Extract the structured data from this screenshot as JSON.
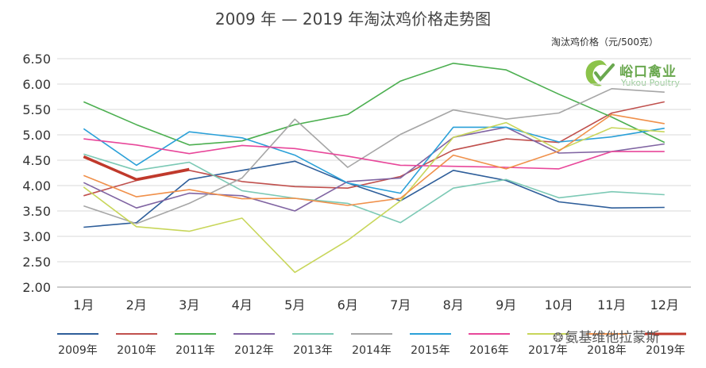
{
  "chart_data": {
    "type": "line",
    "title": "2009 年 — 2019 年淘汰鸡价格走势图",
    "ylabel": "淘汰鸡价格（元/500克）",
    "xlabel": "",
    "ylim": [
      2.0,
      6.5
    ],
    "yticks": [
      "6.50",
      "6.00",
      "5.50",
      "5.00",
      "4.50",
      "4.00",
      "3.50",
      "3.00",
      "2.50",
      "2.00"
    ],
    "categories": [
      "1月",
      "2月",
      "3月",
      "4月",
      "5月",
      "6月",
      "7月",
      "8月",
      "9月",
      "10月",
      "11月",
      "12月"
    ],
    "grid": "horizontal",
    "legend_position": "bottom",
    "series": [
      {
        "name": "2009年",
        "color": "#2e5e9a",
        "values": [
          3.18,
          3.27,
          4.12,
          4.3,
          4.48,
          4.05,
          3.7,
          4.3,
          4.1,
          3.68,
          3.56,
          3.57
        ]
      },
      {
        "name": "2010年",
        "color": "#c0504d",
        "values": [
          3.8,
          4.1,
          4.3,
          4.08,
          3.98,
          3.95,
          4.18,
          4.7,
          4.92,
          4.85,
          5.43,
          5.65
        ]
      },
      {
        "name": "2011年",
        "color": "#4caf50",
        "values": [
          5.65,
          5.2,
          4.8,
          4.88,
          5.2,
          5.4,
          6.06,
          6.41,
          6.28,
          5.8,
          5.35,
          4.85
        ]
      },
      {
        "name": "2012年",
        "color": "#8064a2",
        "values": [
          4.06,
          3.56,
          3.85,
          3.8,
          3.5,
          4.08,
          4.15,
          4.95,
          5.15,
          4.64,
          4.67,
          4.82
        ]
      },
      {
        "name": "2013年",
        "color": "#7cc9b5",
        "values": [
          4.62,
          4.3,
          4.46,
          3.9,
          3.75,
          3.65,
          3.27,
          3.95,
          4.12,
          3.76,
          3.88,
          3.82
        ]
      },
      {
        "name": "2014年",
        "color": "#a6a6a6",
        "values": [
          3.6,
          3.25,
          3.65,
          4.15,
          5.31,
          4.36,
          5.01,
          5.49,
          5.31,
          5.43,
          5.91,
          5.84
        ]
      },
      {
        "name": "2015年",
        "color": "#2aa0d8",
        "values": [
          5.12,
          4.4,
          5.06,
          4.94,
          4.6,
          4.05,
          3.85,
          5.15,
          5.15,
          4.86,
          4.96,
          5.13
        ]
      },
      {
        "name": "2016年",
        "color": "#e8479a",
        "values": [
          4.92,
          4.8,
          4.63,
          4.79,
          4.73,
          4.58,
          4.4,
          4.38,
          4.36,
          4.33,
          4.67,
          4.67
        ]
      },
      {
        "name": "2017年",
        "color": "#c8d65a",
        "values": [
          3.97,
          3.19,
          3.1,
          3.36,
          2.29,
          2.92,
          3.7,
          4.95,
          5.24,
          4.7,
          5.14,
          5.06
        ]
      },
      {
        "name": "2018年",
        "color": "#f0904a",
        "values": [
          4.2,
          3.78,
          3.92,
          3.74,
          3.75,
          3.61,
          3.75,
          4.6,
          4.33,
          4.68,
          5.4,
          5.22
        ]
      },
      {
        "name": "2019年",
        "color": "#c0392b",
        "values": [
          4.57,
          4.12,
          4.32,
          null,
          null,
          null,
          null,
          null,
          null,
          null,
          null,
          null
        ],
        "thick": true
      }
    ]
  },
  "logo": {
    "text_cn": "峪口禽业",
    "text_en": "Yukou Poultry"
  },
  "watermark": {
    "text": "氨基维他拉蒙斯"
  }
}
